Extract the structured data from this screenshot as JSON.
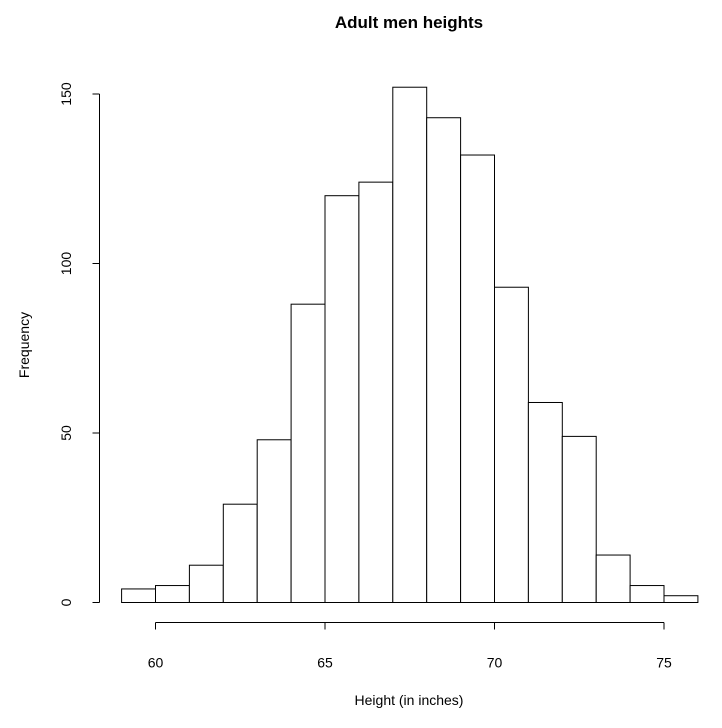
{
  "chart_data": {
    "type": "bar",
    "title": "Adult men heights",
    "xlabel": "Height (in inches)",
    "ylabel": "Frequency",
    "bin_width": 1,
    "bins": [
      {
        "x0": 59,
        "x1": 60,
        "count": 4
      },
      {
        "x0": 60,
        "x1": 61,
        "count": 5
      },
      {
        "x0": 61,
        "x1": 62,
        "count": 11
      },
      {
        "x0": 62,
        "x1": 63,
        "count": 29
      },
      {
        "x0": 63,
        "x1": 64,
        "count": 48
      },
      {
        "x0": 64,
        "x1": 65,
        "count": 88
      },
      {
        "x0": 65,
        "x1": 66,
        "count": 120
      },
      {
        "x0": 66,
        "x1": 67,
        "count": 124
      },
      {
        "x0": 67,
        "x1": 68,
        "count": 152
      },
      {
        "x0": 68,
        "x1": 69,
        "count": 143
      },
      {
        "x0": 69,
        "x1": 70,
        "count": 132
      },
      {
        "x0": 70,
        "x1": 71,
        "count": 93
      },
      {
        "x0": 71,
        "x1": 72,
        "count": 59
      },
      {
        "x0": 72,
        "x1": 73,
        "count": 49
      },
      {
        "x0": 73,
        "x1": 74,
        "count": 14
      },
      {
        "x0": 74,
        "x1": 75,
        "count": 5
      },
      {
        "x0": 75,
        "x1": 76,
        "count": 2
      }
    ],
    "x_ticks": [
      60,
      65,
      70,
      75
    ],
    "y_ticks": [
      0,
      50,
      100,
      150
    ],
    "xlim": [
      59,
      76
    ],
    "ylim": [
      0,
      152
    ],
    "grid": false,
    "bar_fill": "#ffffff",
    "bar_stroke": "#000000"
  }
}
